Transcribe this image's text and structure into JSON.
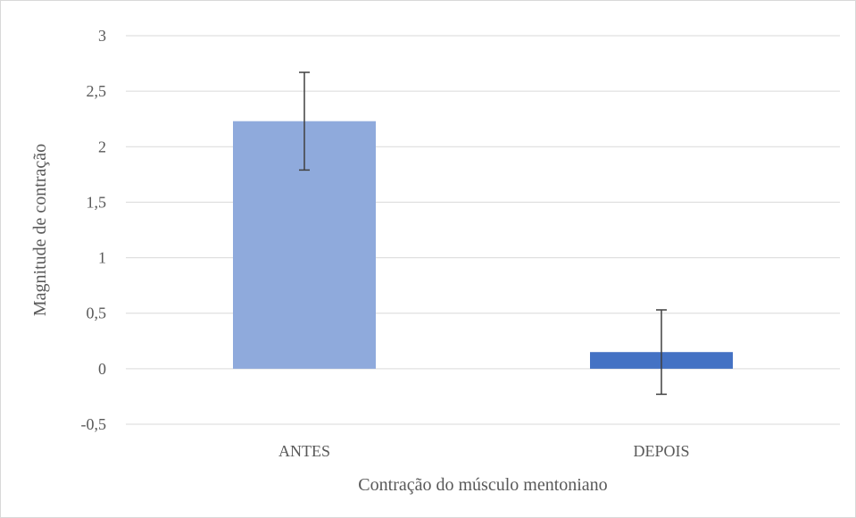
{
  "chart_data": {
    "type": "bar",
    "categories": [
      "ANTES",
      "DEPOIS"
    ],
    "values": [
      2.23,
      0.15
    ],
    "error_bars": [
      {
        "low": 1.79,
        "high": 2.67
      },
      {
        "low": -0.23,
        "high": 0.53
      }
    ],
    "bar_colors": [
      "#8faadc",
      "#4472c4"
    ],
    "title": "",
    "xlabel": "Contração do músculo mentoniano",
    "ylabel": "Magnitude de contração",
    "ylim": [
      -0.5,
      3
    ],
    "yticks": [
      3,
      2.5,
      2,
      1.5,
      1,
      0.5,
      0,
      -0.5
    ],
    "ytick_labels": [
      "3",
      "2,5",
      "2",
      "1,5",
      "1",
      "0,5",
      "0",
      "-0,5"
    ],
    "grid": true,
    "legend": "none"
  },
  "colors": {
    "grid": "#d9d9d9",
    "error_bar": "#404040",
    "text": "#595959"
  }
}
